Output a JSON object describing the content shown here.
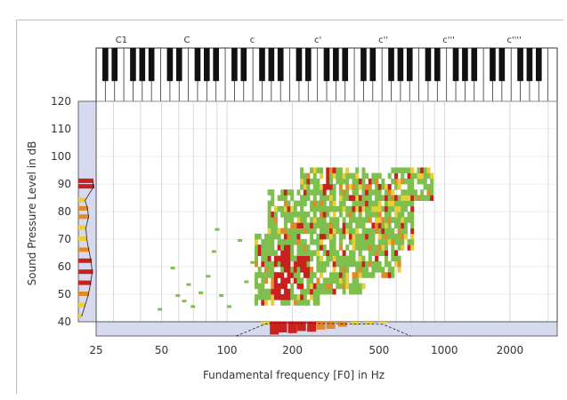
{
  "chart_data": {
    "type": "heatmap",
    "xlabel": "Fundamental frequency [F0] in Hz",
    "ylabel": "Sound Pressure Level in dB",
    "x_scale": "log",
    "xlim": [
      25,
      3300
    ],
    "ylim": [
      40,
      120
    ],
    "x_ticks": [
      "25",
      "50",
      "100",
      "200",
      "500",
      "1000",
      "2000"
    ],
    "x_tick_values": [
      25,
      50,
      100,
      200,
      500,
      1000,
      2000
    ],
    "y_ticks": [
      "120",
      "110",
      "100",
      "90",
      "80",
      "70",
      "60",
      "50",
      "40"
    ],
    "y_tick_values": [
      120,
      110,
      100,
      90,
      80,
      70,
      60,
      50,
      40
    ],
    "piano_labels": [
      "C1",
      "C",
      "c",
      "c'",
      "c''",
      "c'''",
      "c''''"
    ],
    "piano_label_freqs": [
      32.7,
      65.4,
      130.8,
      261.6,
      523.3,
      1046.5,
      2093
    ],
    "colors": {
      "low": "#7fbf4d",
      "mid": "#e8cf3a",
      "high": "#e08a2a",
      "peak": "#c9211e",
      "margin_panel": "#d7d9ee",
      "grid": "#c8c8c8"
    },
    "cloud_regions": [
      {
        "f0_min": 130,
        "f0_max": 170,
        "spl_min": 46,
        "spl_max": 70
      },
      {
        "f0_min": 150,
        "f0_max": 260,
        "spl_min": 46,
        "spl_max": 86
      },
      {
        "f0_min": 210,
        "f0_max": 420,
        "spl_min": 50,
        "spl_max": 95
      },
      {
        "f0_min": 330,
        "f0_max": 620,
        "spl_min": 56,
        "spl_max": 93
      },
      {
        "f0_min": 420,
        "f0_max": 720,
        "spl_min": 66,
        "spl_max": 90
      },
      {
        "f0_min": 560,
        "f0_max": 880,
        "spl_min": 84,
        "spl_max": 94
      }
    ],
    "red_regions": [
      {
        "f0_min": 160,
        "f0_max": 190,
        "spl_min": 48,
        "spl_max": 66
      },
      {
        "f0_min": 200,
        "f0_max": 240,
        "spl_min": 52,
        "spl_max": 62
      },
      {
        "f0_min": 270,
        "f0_max": 300,
        "spl_min": 86,
        "spl_max": 92
      }
    ],
    "scattered_points": [
      [
        55,
        60
      ],
      [
        58,
        50
      ],
      [
        62,
        48
      ],
      [
        65,
        54
      ],
      [
        68,
        46
      ],
      [
        74,
        51
      ],
      [
        80,
        57
      ],
      [
        85,
        66
      ],
      [
        88,
        74
      ],
      [
        92,
        50
      ],
      [
        100,
        46
      ],
      [
        112,
        70
      ],
      [
        120,
        55
      ],
      [
        128,
        62
      ],
      [
        48,
        45
      ]
    ],
    "y_marginal": [
      {
        "spl": 91,
        "count": 0.85
      },
      {
        "spl": 89,
        "count": 0.9
      },
      {
        "spl": 84,
        "count": 0.4
      },
      {
        "spl": 81,
        "count": 0.55
      },
      {
        "spl": 78,
        "count": 0.6
      },
      {
        "spl": 74,
        "count": 0.45
      },
      {
        "spl": 70,
        "count": 0.5
      },
      {
        "spl": 66,
        "count": 0.62
      },
      {
        "spl": 62,
        "count": 0.75
      },
      {
        "spl": 58,
        "count": 0.82
      },
      {
        "spl": 54,
        "count": 0.72
      },
      {
        "spl": 50,
        "count": 0.6
      },
      {
        "spl": 46,
        "count": 0.4
      },
      {
        "spl": 42,
        "count": 0.2
      }
    ],
    "x_marginal": [
      {
        "f0": 150,
        "count": 0.25
      },
      {
        "f0": 165,
        "count": 0.9
      },
      {
        "f0": 180,
        "count": 0.75
      },
      {
        "f0": 200,
        "count": 0.8
      },
      {
        "f0": 220,
        "count": 0.65
      },
      {
        "f0": 245,
        "count": 0.7
      },
      {
        "f0": 270,
        "count": 0.55
      },
      {
        "f0": 300,
        "count": 0.5
      },
      {
        "f0": 340,
        "count": 0.35
      },
      {
        "f0": 390,
        "count": 0.25
      },
      {
        "f0": 450,
        "count": 0.18
      },
      {
        "f0": 520,
        "count": 0.1
      }
    ]
  }
}
